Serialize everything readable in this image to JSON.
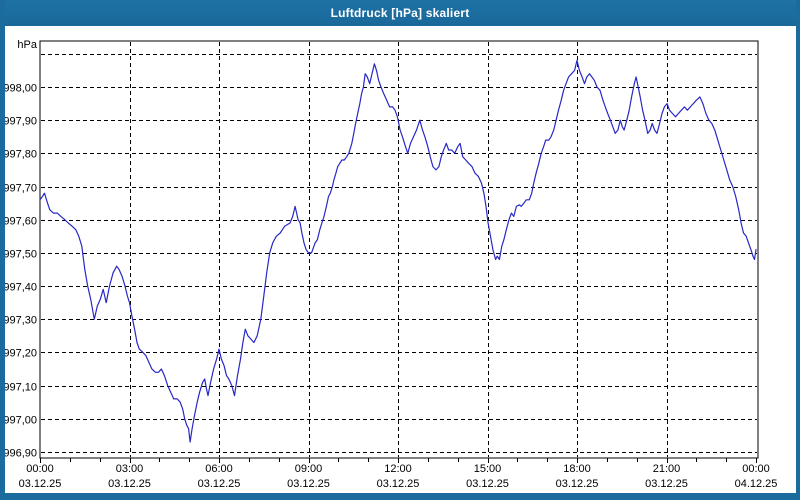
{
  "window": {
    "title": "Luftdruck [hPa] skaliert"
  },
  "colors": {
    "frame": "#1b6b9e",
    "title_text": "#ffffff",
    "plot_background": "#ffffff",
    "grid": "#000000",
    "axis": "#000000",
    "label": "#000000",
    "line": "#2828c6"
  },
  "chart_data": {
    "type": "line",
    "title": "Luftdruck [hPa] skaliert",
    "ylabel": "hPa",
    "unit_label": "hPa",
    "ylim": [
      996.85,
      998.13
    ],
    "xlim_hours": [
      0,
      24
    ],
    "grid": "dashed",
    "legend": "none",
    "y_ticks": [
      {
        "v": 998.1,
        "label": ""
      },
      {
        "v": 998.0,
        "label": "998,00"
      },
      {
        "v": 997.9,
        "label": "997,90"
      },
      {
        "v": 997.8,
        "label": "997,80"
      },
      {
        "v": 997.7,
        "label": "997,70"
      },
      {
        "v": 997.6,
        "label": "997,60"
      },
      {
        "v": 997.5,
        "label": "997,50"
      },
      {
        "v": 997.4,
        "label": "997,40"
      },
      {
        "v": 997.3,
        "label": "997,30"
      },
      {
        "v": 997.2,
        "label": "997,20"
      },
      {
        "v": 997.1,
        "label": "997,10"
      },
      {
        "v": 997.0,
        "label": "997,00"
      },
      {
        "v": 996.9,
        "label": "996,90"
      }
    ],
    "x_ticks": [
      {
        "h": 0,
        "time": "00:00",
        "date": "03.12.25"
      },
      {
        "h": 3,
        "time": "03:00",
        "date": "03.12.25"
      },
      {
        "h": 6,
        "time": "06:00",
        "date": "03.12.25"
      },
      {
        "h": 9,
        "time": "09:00",
        "date": "03.12.25"
      },
      {
        "h": 12,
        "time": "12:00",
        "date": "03.12.25"
      },
      {
        "h": 15,
        "time": "15:00",
        "date": "03.12.25"
      },
      {
        "h": 18,
        "time": "18:00",
        "date": "03.12.25"
      },
      {
        "h": 21,
        "time": "21:00",
        "date": "03.12.25"
      },
      {
        "h": 24,
        "time": "00:00",
        "date": "04.12.25"
      }
    ],
    "minor_tick_every_hours": 1,
    "series": [
      {
        "name": "Luftdruck [hPa]",
        "points": [
          [
            0.0,
            997.66
          ],
          [
            0.08,
            997.67
          ],
          [
            0.15,
            997.68
          ],
          [
            0.25,
            997.65
          ],
          [
            0.33,
            997.63
          ],
          [
            0.45,
            997.62
          ],
          [
            0.58,
            997.62
          ],
          [
            0.7,
            997.61
          ],
          [
            0.83,
            997.6
          ],
          [
            0.95,
            997.59
          ],
          [
            1.08,
            997.58
          ],
          [
            1.2,
            997.57
          ],
          [
            1.3,
            997.55
          ],
          [
            1.4,
            997.52
          ],
          [
            1.5,
            997.45
          ],
          [
            1.6,
            997.4
          ],
          [
            1.7,
            997.36
          ],
          [
            1.82,
            997.3
          ],
          [
            1.92,
            997.34
          ],
          [
            2.02,
            997.36
          ],
          [
            2.12,
            997.39
          ],
          [
            2.22,
            997.35
          ],
          [
            2.33,
            997.4
          ],
          [
            2.45,
            997.44
          ],
          [
            2.57,
            997.46
          ],
          [
            2.65,
            997.45
          ],
          [
            2.75,
            997.43
          ],
          [
            2.85,
            997.4
          ],
          [
            2.93,
            997.37
          ],
          [
            3.0,
            997.35
          ],
          [
            3.08,
            997.31
          ],
          [
            3.17,
            997.27
          ],
          [
            3.25,
            997.23
          ],
          [
            3.33,
            997.21
          ],
          [
            3.45,
            997.2
          ],
          [
            3.55,
            997.19
          ],
          [
            3.65,
            997.17
          ],
          [
            3.75,
            997.15
          ],
          [
            3.87,
            997.14
          ],
          [
            3.97,
            997.14
          ],
          [
            4.07,
            997.15
          ],
          [
            4.17,
            997.13
          ],
          [
            4.28,
            997.1
          ],
          [
            4.38,
            997.08
          ],
          [
            4.48,
            997.06
          ],
          [
            4.6,
            997.06
          ],
          [
            4.7,
            997.05
          ],
          [
            4.78,
            997.03
          ],
          [
            4.85,
            997.0
          ],
          [
            4.92,
            996.98
          ],
          [
            4.98,
            996.97
          ],
          [
            5.03,
            996.93
          ],
          [
            5.1,
            996.97
          ],
          [
            5.18,
            997.01
          ],
          [
            5.27,
            997.05
          ],
          [
            5.35,
            997.08
          ],
          [
            5.45,
            997.11
          ],
          [
            5.52,
            997.12
          ],
          [
            5.58,
            997.09
          ],
          [
            5.63,
            997.07
          ],
          [
            5.72,
            997.11
          ],
          [
            5.82,
            997.15
          ],
          [
            5.92,
            997.18
          ],
          [
            6.0,
            997.21
          ],
          [
            6.08,
            997.18
          ],
          [
            6.17,
            997.16
          ],
          [
            6.25,
            997.13
          ],
          [
            6.33,
            997.12
          ],
          [
            6.43,
            997.1
          ],
          [
            6.52,
            997.07
          ],
          [
            6.62,
            997.13
          ],
          [
            6.72,
            997.18
          ],
          [
            6.8,
            997.23
          ],
          [
            6.88,
            997.27
          ],
          [
            6.97,
            997.25
          ],
          [
            7.07,
            997.24
          ],
          [
            7.17,
            997.23
          ],
          [
            7.28,
            997.25
          ],
          [
            7.4,
            997.3
          ],
          [
            7.5,
            997.37
          ],
          [
            7.6,
            997.44
          ],
          [
            7.7,
            997.5
          ],
          [
            7.8,
            997.53
          ],
          [
            7.92,
            997.55
          ],
          [
            8.05,
            997.56
          ],
          [
            8.2,
            997.58
          ],
          [
            8.38,
            997.59
          ],
          [
            8.47,
            997.61
          ],
          [
            8.55,
            997.64
          ],
          [
            8.65,
            997.6
          ],
          [
            8.72,
            997.59
          ],
          [
            8.78,
            997.56
          ],
          [
            8.85,
            997.53
          ],
          [
            8.92,
            997.51
          ],
          [
            9.0,
            997.5
          ],
          [
            9.1,
            997.5
          ],
          [
            9.22,
            997.53
          ],
          [
            9.3,
            997.54
          ],
          [
            9.38,
            997.57
          ],
          [
            9.45,
            997.59
          ],
          [
            9.52,
            997.61
          ],
          [
            9.6,
            997.64
          ],
          [
            9.67,
            997.67
          ],
          [
            9.73,
            997.68
          ],
          [
            9.8,
            997.7
          ],
          [
            9.85,
            997.72
          ],
          [
            9.92,
            997.74
          ],
          [
            9.98,
            997.76
          ],
          [
            10.05,
            997.77
          ],
          [
            10.12,
            997.78
          ],
          [
            10.2,
            997.78
          ],
          [
            10.28,
            997.79
          ],
          [
            10.35,
            997.8
          ],
          [
            10.45,
            997.83
          ],
          [
            10.52,
            997.86
          ],
          [
            10.58,
            997.89
          ],
          [
            10.65,
            997.92
          ],
          [
            10.72,
            997.95
          ],
          [
            10.78,
            997.98
          ],
          [
            10.84,
            998.0
          ],
          [
            10.9,
            998.04
          ],
          [
            10.97,
            998.03
          ],
          [
            11.05,
            998.01
          ],
          [
            11.13,
            998.04
          ],
          [
            11.21,
            998.07
          ],
          [
            11.28,
            998.05
          ],
          [
            11.35,
            998.02
          ],
          [
            11.43,
            998.0
          ],
          [
            11.52,
            997.98
          ],
          [
            11.62,
            997.96
          ],
          [
            11.72,
            997.94
          ],
          [
            11.82,
            997.94
          ],
          [
            11.9,
            997.93
          ],
          [
            11.98,
            997.91
          ],
          [
            12.07,
            997.87
          ],
          [
            12.15,
            997.85
          ],
          [
            12.25,
            997.82
          ],
          [
            12.33,
            997.8
          ],
          [
            12.42,
            997.83
          ],
          [
            12.52,
            997.85
          ],
          [
            12.62,
            997.87
          ],
          [
            12.73,
            997.9
          ],
          [
            12.82,
            997.87
          ],
          [
            12.9,
            997.85
          ],
          [
            13.0,
            997.82
          ],
          [
            13.08,
            997.79
          ],
          [
            13.17,
            997.76
          ],
          [
            13.27,
            997.75
          ],
          [
            13.37,
            997.76
          ],
          [
            13.45,
            997.79
          ],
          [
            13.53,
            997.81
          ],
          [
            13.62,
            997.83
          ],
          [
            13.7,
            997.81
          ],
          [
            13.8,
            997.81
          ],
          [
            13.9,
            997.8
          ],
          [
            14.0,
            997.82
          ],
          [
            14.08,
            997.83
          ],
          [
            14.17,
            997.79
          ],
          [
            14.27,
            997.78
          ],
          [
            14.37,
            997.77
          ],
          [
            14.48,
            997.76
          ],
          [
            14.58,
            997.74
          ],
          [
            14.7,
            997.73
          ],
          [
            14.8,
            997.71
          ],
          [
            14.88,
            997.68
          ],
          [
            14.95,
            997.64
          ],
          [
            15.02,
            997.59
          ],
          [
            15.1,
            997.55
          ],
          [
            15.18,
            997.51
          ],
          [
            15.27,
            997.48
          ],
          [
            15.33,
            997.49
          ],
          [
            15.4,
            997.48
          ],
          [
            15.48,
            997.52
          ],
          [
            15.55,
            997.54
          ],
          [
            15.63,
            997.57
          ],
          [
            15.72,
            997.6
          ],
          [
            15.8,
            997.62
          ],
          [
            15.88,
            997.61
          ],
          [
            15.97,
            997.64
          ],
          [
            16.07,
            997.645
          ],
          [
            16.13,
            997.64
          ],
          [
            16.22,
            997.65
          ],
          [
            16.3,
            997.66
          ],
          [
            16.4,
            997.66
          ],
          [
            16.48,
            997.68
          ],
          [
            16.55,
            997.71
          ],
          [
            16.63,
            997.74
          ],
          [
            16.72,
            997.77
          ],
          [
            16.8,
            997.8
          ],
          [
            16.88,
            997.82
          ],
          [
            16.95,
            997.84
          ],
          [
            17.05,
            997.84
          ],
          [
            17.13,
            997.85
          ],
          [
            17.22,
            997.87
          ],
          [
            17.3,
            997.9
          ],
          [
            17.38,
            997.93
          ],
          [
            17.47,
            997.96
          ],
          [
            17.55,
            997.99
          ],
          [
            17.63,
            998.01
          ],
          [
            17.72,
            998.03
          ],
          [
            17.82,
            998.04
          ],
          [
            17.92,
            998.05
          ],
          [
            18.0,
            998.08
          ],
          [
            18.08,
            998.05
          ],
          [
            18.17,
            998.03
          ],
          [
            18.25,
            998.01
          ],
          [
            18.33,
            998.03
          ],
          [
            18.42,
            998.04
          ],
          [
            18.5,
            998.03
          ],
          [
            18.58,
            998.02
          ],
          [
            18.67,
            998.0
          ],
          [
            18.77,
            997.99
          ],
          [
            18.87,
            997.96
          ],
          [
            18.95,
            997.94
          ],
          [
            19.03,
            997.92
          ],
          [
            19.12,
            997.9
          ],
          [
            19.2,
            997.88
          ],
          [
            19.28,
            997.86
          ],
          [
            19.37,
            997.87
          ],
          [
            19.45,
            997.9
          ],
          [
            19.52,
            997.88
          ],
          [
            19.58,
            997.87
          ],
          [
            19.67,
            997.9
          ],
          [
            19.75,
            997.93
          ],
          [
            19.83,
            997.97
          ],
          [
            19.92,
            998.01
          ],
          [
            19.98,
            998.03
          ],
          [
            20.05,
            998.0
          ],
          [
            20.12,
            997.97
          ],
          [
            20.2,
            997.93
          ],
          [
            20.28,
            997.9
          ],
          [
            20.37,
            997.86
          ],
          [
            20.45,
            997.87
          ],
          [
            20.52,
            997.89
          ],
          [
            20.6,
            997.87
          ],
          [
            20.68,
            997.86
          ],
          [
            20.77,
            997.89
          ],
          [
            20.85,
            997.92
          ],
          [
            20.93,
            997.94
          ],
          [
            21.02,
            997.95
          ],
          [
            21.1,
            997.93
          ],
          [
            21.2,
            997.92
          ],
          [
            21.3,
            997.91
          ],
          [
            21.4,
            997.92
          ],
          [
            21.5,
            997.93
          ],
          [
            21.6,
            997.94
          ],
          [
            21.7,
            997.93
          ],
          [
            21.8,
            997.94
          ],
          [
            21.9,
            997.95
          ],
          [
            22.0,
            997.96
          ],
          [
            22.12,
            997.97
          ],
          [
            22.22,
            997.95
          ],
          [
            22.32,
            997.92
          ],
          [
            22.42,
            997.9
          ],
          [
            22.52,
            997.89
          ],
          [
            22.62,
            997.87
          ],
          [
            22.72,
            997.84
          ],
          [
            22.82,
            997.81
          ],
          [
            22.92,
            997.78
          ],
          [
            23.02,
            997.75
          ],
          [
            23.12,
            997.72
          ],
          [
            23.22,
            997.7
          ],
          [
            23.32,
            997.67
          ],
          [
            23.42,
            997.63
          ],
          [
            23.5,
            997.59
          ],
          [
            23.58,
            997.56
          ],
          [
            23.67,
            997.55
          ],
          [
            23.75,
            997.53
          ],
          [
            23.83,
            997.51
          ],
          [
            23.9,
            997.49
          ],
          [
            23.95,
            997.48
          ],
          [
            24.0,
            997.51
          ]
        ]
      }
    ]
  }
}
